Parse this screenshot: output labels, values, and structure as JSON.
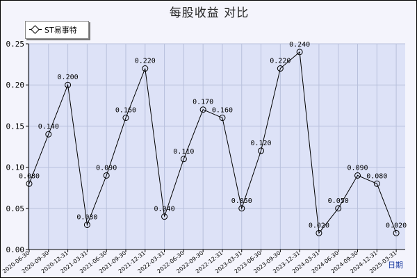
{
  "chart_data": {
    "type": "line",
    "title": "每股收益  对比",
    "xlabel": "日期",
    "ylabel": "",
    "ylim": [
      0,
      0.25
    ],
    "yticks": [
      "0.00",
      "0.05",
      "0.10",
      "0.15",
      "0.20",
      "0.25"
    ],
    "grid": true,
    "legend_position": "top-left",
    "categories": [
      "2020-06-30",
      "2020-09-30",
      "2020-12-31",
      "2021-03-31",
      "2021-06-30",
      "2021-09-30",
      "2021-12-31",
      "2022-03-31",
      "2022-06-30",
      "2022-09-30",
      "2022-12-31",
      "2023-03-31",
      "2023-06-30",
      "2023-09-30",
      "2023-12-31",
      "2024-03-31",
      "2024-06-30",
      "2024-09-30",
      "2024-12-31",
      "2025-03-31"
    ],
    "series": [
      {
        "name": "ST易事特",
        "color": "#000000",
        "marker": "diamond",
        "values": [
          0.08,
          0.14,
          0.2,
          0.03,
          0.09,
          0.16,
          0.22,
          0.04,
          0.11,
          0.17,
          0.16,
          0.05,
          0.12,
          0.22,
          0.24,
          0.02,
          0.05,
          0.09,
          0.08,
          0.02
        ],
        "labels": [
          "0.080",
          "0.140",
          "0.200",
          "0.030",
          "0.090",
          "0.160",
          "0.220",
          "0.040",
          "0.110",
          "0.170",
          "0.160",
          "0.050",
          "0.120",
          "0.220",
          "0.240",
          "0.020",
          "0.050",
          "0.090",
          "0.080",
          "0.020"
        ]
      }
    ]
  },
  "colors": {
    "plot_background": "#dde2f7",
    "frame_background": "#f4f4fc",
    "grid": "#b8c0dc",
    "line": "#000000",
    "axis_label": "#1a3aa0"
  }
}
